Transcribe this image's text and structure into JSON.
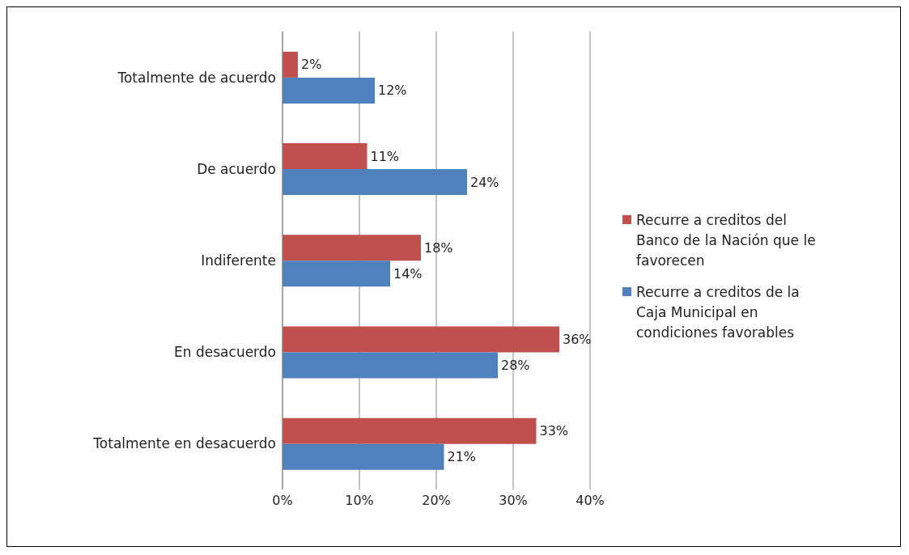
{
  "chart_data": {
    "type": "bar",
    "orientation": "horizontal",
    "categories": [
      "Totalmente de acuerdo",
      "De acuerdo",
      "Indiferente",
      "En desacuerdo",
      "Totalmente en desacuerdo"
    ],
    "series": [
      {
        "name": "Recurre a creditos del Banco de la Nación que le favorecen",
        "color": "#c0504d",
        "values": [
          2,
          11,
          18,
          36,
          33
        ],
        "value_labels": [
          "2%",
          "11%",
          "18%",
          "36%",
          "33%"
        ]
      },
      {
        "name": "Recurre a creditos de la Caja Municipal en condiciones favorables",
        "color": "#4f81bd",
        "values": [
          12,
          24,
          14,
          28,
          21
        ],
        "value_labels": [
          "12%",
          "24%",
          "14%",
          "28%",
          "21%"
        ]
      }
    ],
    "xlim": [
      0,
      40
    ],
    "xticks": [
      {
        "value": 0,
        "label": "0%"
      },
      {
        "value": 10,
        "label": "10%"
      },
      {
        "value": 20,
        "label": "20%"
      },
      {
        "value": 30,
        "label": "30%"
      },
      {
        "value": 40,
        "label": "40%"
      }
    ],
    "grid": "x",
    "legend": "right"
  }
}
